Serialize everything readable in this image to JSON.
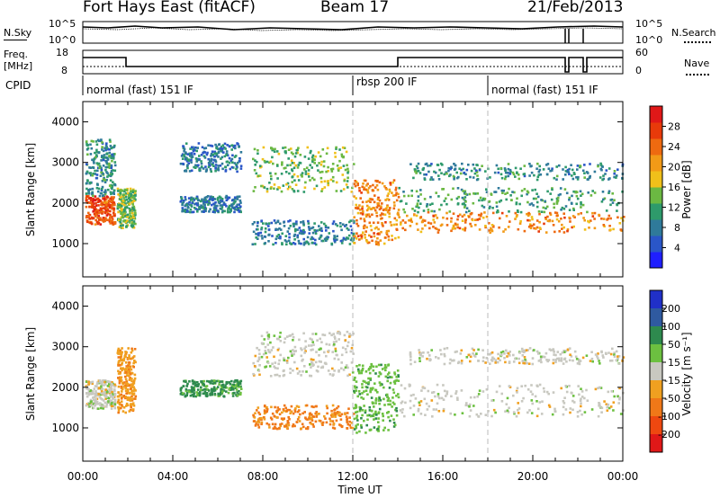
{
  "header": {
    "radar": "Fort Hays East (fitACF)",
    "beam": "Beam 17",
    "date": "21/Feb/2013"
  },
  "summary_panels": {
    "sky": {
      "left_label": "N.Sky",
      "right_label": "N.Search",
      "left_ticks": [
        "10^5",
        "10^0"
      ],
      "right_ticks": [
        "10^5",
        "10^0"
      ]
    },
    "freq": {
      "left_label_1": "Freq.",
      "left_label_2": "[MHz]",
      "right_label": "Nave",
      "left_ticks": [
        "18",
        "8"
      ],
      "right_ticks": [
        "60",
        "0"
      ]
    },
    "cpid": {
      "label": "CPID",
      "segments": [
        {
          "text": "normal (fast) 151 IF",
          "start_hour": 0
        },
        {
          "text": "rbsp 200 IF",
          "start_hour": 12
        },
        {
          "text": "normal (fast) 151 IF",
          "start_hour": 18
        }
      ]
    }
  },
  "chart_data": [
    {
      "type": "heatmap",
      "name": "power",
      "ylabel": "Slant Range [km]",
      "xlabel": "Time UT",
      "x_ticks": [
        "00:00",
        "04:00",
        "08:00",
        "12:00",
        "16:00",
        "20:00",
        "00:00"
      ],
      "xlim_hours": [
        0,
        24
      ],
      "ylim_km": [
        180,
        4500
      ],
      "y_ticks": [
        1000,
        2000,
        3000,
        4000
      ],
      "colorbar": {
        "label": "Power [dB]",
        "ticks": [
          "4",
          "8",
          "12",
          "16",
          "20",
          "24",
          "28"
        ],
        "colors": [
          "#1f1fff",
          "#2a56c8",
          "#2f7a9a",
          "#2e9a6b",
          "#6bb842",
          "#f0c01a",
          "#f29a17",
          "#ee6a10",
          "#e83a0a",
          "#e01818"
        ]
      },
      "echo_regions": [
        {
          "t": [
            0.1,
            1.4
          ],
          "r": [
            1500,
            2200
          ],
          "level": 26
        },
        {
          "t": [
            0.1,
            1.4
          ],
          "r": [
            2200,
            3600
          ],
          "level": 10
        },
        {
          "t": [
            1.5,
            2.3
          ],
          "r": [
            1400,
            2400
          ],
          "level": 14
        },
        {
          "t": [
            4.3,
            7.0
          ],
          "r": [
            2800,
            3500
          ],
          "level": 8
        },
        {
          "t": [
            4.3,
            7.0
          ],
          "r": [
            1800,
            2200
          ],
          "level": 8
        },
        {
          "t": [
            7.5,
            12.0
          ],
          "r": [
            2300,
            3400
          ],
          "level": 14
        },
        {
          "t": [
            7.5,
            12.0
          ],
          "r": [
            1000,
            1600
          ],
          "level": 8
        },
        {
          "t": [
            12.0,
            14.0
          ],
          "r": [
            1000,
            2600
          ],
          "level": 22
        },
        {
          "t": [
            14.0,
            24.0
          ],
          "r": [
            1300,
            1800
          ],
          "level": 22
        },
        {
          "t": [
            14.0,
            24.0
          ],
          "r": [
            1800,
            2400
          ],
          "level": 12
        },
        {
          "t": [
            14.5,
            24.0
          ],
          "r": [
            2600,
            3000
          ],
          "level": 10
        }
      ]
    },
    {
      "type": "heatmap",
      "name": "velocity",
      "ylabel": "Slant Range [km]",
      "xlabel": "Time UT",
      "x_ticks": [
        "00:00",
        "04:00",
        "08:00",
        "12:00",
        "16:00",
        "20:00",
        "00:00"
      ],
      "xlim_hours": [
        0,
        24
      ],
      "ylim_km": [
        180,
        4500
      ],
      "y_ticks": [
        1000,
        2000,
        3000,
        4000
      ],
      "colorbar": {
        "label": "Velocity [m s⁻¹]",
        "ticks": [
          "200",
          "100",
          "50",
          "15",
          "-15",
          "-50",
          "-100",
          "-200"
        ],
        "colors": [
          "#2030c8",
          "#2f5aa0",
          "#2e8a4e",
          "#6cc040",
          "#c8c8c0",
          "#f0a020",
          "#f07818",
          "#ee4810",
          "#e01818"
        ]
      },
      "echo_regions": [
        {
          "t": [
            0.1,
            1.4
          ],
          "r": [
            1500,
            2200
          ],
          "level": 0
        },
        {
          "t": [
            1.5,
            2.3
          ],
          "r": [
            1400,
            3000
          ],
          "level": -40
        },
        {
          "t": [
            4.3,
            7.0
          ],
          "r": [
            1800,
            2200
          ],
          "level": 60
        },
        {
          "t": [
            7.5,
            12.0
          ],
          "r": [
            2300,
            3400
          ],
          "level": 0
        },
        {
          "t": [
            7.5,
            12.0
          ],
          "r": [
            1000,
            1600
          ],
          "level": -60
        },
        {
          "t": [
            12.0,
            14.0
          ],
          "r": [
            900,
            2600
          ],
          "level": 40
        },
        {
          "t": [
            14.0,
            24.0
          ],
          "r": [
            1300,
            2100
          ],
          "level": 0
        },
        {
          "t": [
            14.5,
            24.0
          ],
          "r": [
            2600,
            3000
          ],
          "level": 0
        }
      ]
    }
  ]
}
